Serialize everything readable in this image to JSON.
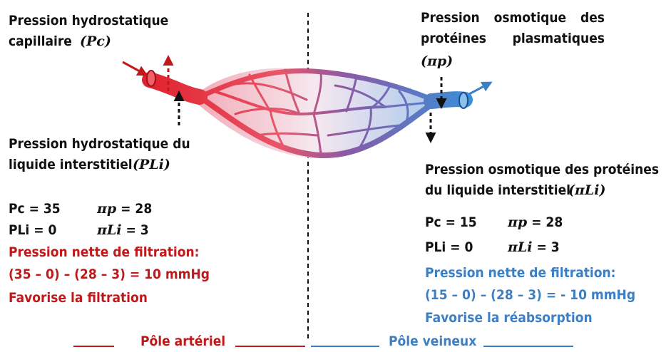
{
  "arterial": {
    "pc_label": "Pression hydrostatique capillaire",
    "pc_symbol": "(Pc)",
    "pli_label": "Pression hydrostatique du liquide interstitiel",
    "pli_symbol": "(PLi)",
    "pc_value_label": "Pc = 35",
    "pip_symbol": "πp",
    "pip_value": "= 28",
    "pli_value_label": "PLi = 0",
    "pili_symbol": "πLi",
    "pili_value": "= 3",
    "net_title": "Pression nette de filtration:",
    "net_formula": "(35 – 0) – (28 – 3) = 10 mmHg",
    "net_effect": "Favorise la filtration"
  },
  "venous": {
    "pip_label": "Pression osmotique des protéines plasmatiques",
    "pip_symbol": "(πp)",
    "pili_label": "Pression osmotique des protéines du liquide interstitiel",
    "pili_symbol": "(πLi)",
    "pc_value_label": "Pc = 15",
    "pip_symbol_short": "πp",
    "pip_value": "= 28",
    "pli_value_label": "PLi = 0",
    "pili_symbol_short": "πLi",
    "pili_value": "= 3",
    "net_title": "Pression nette de filtration:",
    "net_formula": "(15 – 0) – (28 – 3) = - 10 mmHg",
    "net_effect": "Favorise la réabsorption"
  },
  "footer": {
    "arterial_pole": "Pôle artériel",
    "venous_pole": "Pôle veineux"
  },
  "colors": {
    "arterial": "#c0191b",
    "venous": "#3d7fc4",
    "text": "#111111"
  }
}
